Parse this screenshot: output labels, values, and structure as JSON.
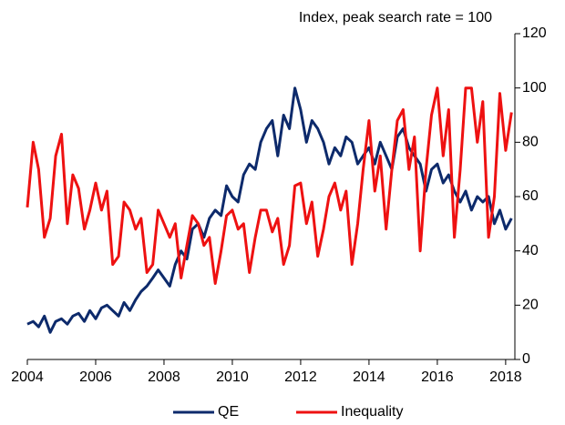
{
  "chart_data": {
    "type": "line",
    "title": "Index, peak search rate = 100",
    "x": [
      2004,
      2004.17,
      2004.33,
      2004.5,
      2004.67,
      2004.83,
      2005,
      2005.17,
      2005.33,
      2005.5,
      2005.67,
      2005.83,
      2006,
      2006.17,
      2006.33,
      2006.5,
      2006.67,
      2006.83,
      2007,
      2007.17,
      2007.33,
      2007.5,
      2007.67,
      2007.83,
      2008,
      2008.17,
      2008.33,
      2008.5,
      2008.67,
      2008.83,
      2009,
      2009.17,
      2009.33,
      2009.5,
      2009.67,
      2009.83,
      2010,
      2010.17,
      2010.33,
      2010.5,
      2010.67,
      2010.83,
      2011,
      2011.17,
      2011.33,
      2011.5,
      2011.67,
      2011.83,
      2012,
      2012.17,
      2012.33,
      2012.5,
      2012.67,
      2012.83,
      2013,
      2013.17,
      2013.33,
      2013.5,
      2013.67,
      2013.83,
      2014,
      2014.17,
      2014.33,
      2014.5,
      2014.67,
      2014.83,
      2015,
      2015.17,
      2015.33,
      2015.5,
      2015.67,
      2015.83,
      2016,
      2016.17,
      2016.33,
      2016.5,
      2016.67,
      2016.83,
      2017,
      2017.17,
      2017.33,
      2017.5,
      2017.67,
      2017.83,
      2018,
      2018.17
    ],
    "series": [
      {
        "name": "QE",
        "color": "#0d2a6b",
        "values": [
          13,
          14,
          12,
          16,
          10,
          14,
          15,
          13,
          16,
          17,
          14,
          18,
          15,
          19,
          20,
          18,
          16,
          21,
          18,
          22,
          25,
          27,
          30,
          33,
          30,
          27,
          35,
          40,
          37,
          48,
          50,
          45,
          52,
          55,
          53,
          64,
          60,
          58,
          68,
          72,
          70,
          80,
          85,
          88,
          75,
          90,
          85,
          100,
          92,
          80,
          88,
          85,
          80,
          72,
          78,
          75,
          82,
          80,
          72,
          75,
          78,
          72,
          80,
          75,
          70,
          82,
          85,
          78,
          75,
          72,
          62,
          70,
          72,
          65,
          68,
          62,
          58,
          62,
          55,
          60,
          58,
          60,
          50,
          55,
          48,
          52
        ]
      },
      {
        "name": "Inequality",
        "color": "#ee1111",
        "values": [
          56,
          80,
          70,
          45,
          52,
          75,
          83,
          50,
          68,
          63,
          48,
          55,
          65,
          55,
          62,
          35,
          38,
          58,
          55,
          48,
          52,
          32,
          35,
          55,
          50,
          45,
          50,
          30,
          42,
          53,
          50,
          42,
          45,
          28,
          40,
          53,
          55,
          48,
          50,
          32,
          45,
          55,
          55,
          47,
          52,
          35,
          42,
          64,
          65,
          50,
          58,
          38,
          48,
          60,
          65,
          55,
          62,
          35,
          50,
          70,
          88,
          62,
          75,
          48,
          70,
          88,
          92,
          70,
          82,
          40,
          70,
          90,
          100,
          75,
          92,
          45,
          70,
          100,
          100,
          80,
          95,
          45,
          60,
          98,
          77,
          91
        ]
      }
    ],
    "xlim": [
      2004,
      2018.27
    ],
    "xticks": [
      2004,
      2006,
      2008,
      2010,
      2012,
      2014,
      2016,
      2018
    ],
    "ylim": [
      0,
      120
    ],
    "yticks": [
      0,
      20,
      40,
      60,
      80,
      100,
      120
    ],
    "grid": false,
    "legend": "bottom"
  }
}
